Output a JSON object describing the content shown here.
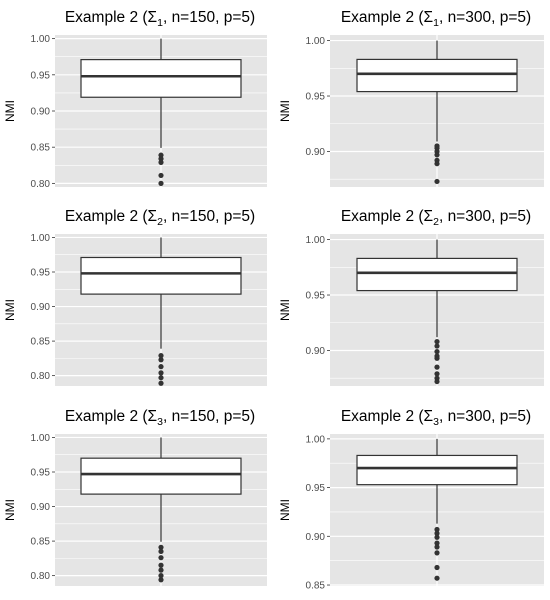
{
  "figure": {
    "background": "#ffffff",
    "panel_background": "#e5e5e5",
    "grid_color": "#ffffff",
    "box_fill": "#ffffff",
    "stroke_color": "#333333",
    "outlier_color": "#333333"
  },
  "chart_data": [
    {
      "type": "boxplot",
      "title": {
        "prefix": "Example 2 (Σ",
        "subscript": "1",
        "suffix": ", n=150, p=5)"
      },
      "ylabel": "NMI",
      "ylim": [
        0.795,
        1.005
      ],
      "yticks": [
        0.8,
        0.85,
        0.9,
        0.95,
        1.0
      ],
      "ytick_labels": [
        "0.80",
        "0.85",
        "0.90",
        "0.95",
        "1.00"
      ],
      "grid": true,
      "box": {
        "min": 0.849,
        "q1": 0.919,
        "median": 0.948,
        "q3": 0.971,
        "max": 1.0
      },
      "outliers": [
        0.839,
        0.834,
        0.829,
        0.811,
        0.8
      ]
    },
    {
      "type": "boxplot",
      "title": {
        "prefix": "Example 2 (Σ",
        "subscript": "1",
        "suffix": ", n=300, p=5)"
      },
      "ylabel": "NMI",
      "ylim": [
        0.868,
        1.005
      ],
      "yticks": [
        0.9,
        0.95,
        1.0
      ],
      "ytick_labels": [
        "0.90",
        "0.95",
        "1.00"
      ],
      "grid": true,
      "box": {
        "min": 0.909,
        "q1": 0.954,
        "median": 0.97,
        "q3": 0.983,
        "max": 1.0
      },
      "outliers": [
        0.905,
        0.903,
        0.9,
        0.897,
        0.892,
        0.889,
        0.873
      ]
    },
    {
      "type": "boxplot",
      "title": {
        "prefix": "Example 2 (Σ",
        "subscript": "2",
        "suffix": ", n=150, p=5)"
      },
      "ylabel": "NMI",
      "ylim": [
        0.785,
        1.005
      ],
      "yticks": [
        0.8,
        0.85,
        0.9,
        0.95,
        1.0
      ],
      "ytick_labels": [
        "0.80",
        "0.85",
        "0.90",
        "0.95",
        "1.00"
      ],
      "grid": true,
      "box": {
        "min": 0.839,
        "q1": 0.918,
        "median": 0.948,
        "q3": 0.971,
        "max": 1.0
      },
      "outliers": [
        0.829,
        0.823,
        0.813,
        0.804,
        0.797,
        0.789
      ]
    },
    {
      "type": "boxplot",
      "title": {
        "prefix": "Example 2 (Σ",
        "subscript": "2",
        "suffix": ", n=300, p=5)"
      },
      "ylabel": "NMI",
      "ylim": [
        0.868,
        1.005
      ],
      "yticks": [
        0.9,
        0.95,
        1.0
      ],
      "ytick_labels": [
        "0.90",
        "0.95",
        "1.00"
      ],
      "grid": true,
      "box": {
        "min": 0.912,
        "q1": 0.954,
        "median": 0.97,
        "q3": 0.983,
        "max": 1.0
      },
      "outliers": [
        0.908,
        0.904,
        0.899,
        0.895,
        0.893,
        0.885,
        0.879,
        0.875,
        0.872
      ]
    },
    {
      "type": "boxplot",
      "title": {
        "prefix": "Example 2 (Σ",
        "subscript": "3",
        "suffix": ", n=150, p=5)"
      },
      "ylabel": "NMI",
      "ylim": [
        0.785,
        1.005
      ],
      "yticks": [
        0.8,
        0.85,
        0.9,
        0.95,
        1.0
      ],
      "ytick_labels": [
        "0.80",
        "0.85",
        "0.90",
        "0.95",
        "1.00"
      ],
      "grid": true,
      "box": {
        "min": 0.849,
        "q1": 0.918,
        "median": 0.947,
        "q3": 0.97,
        "max": 1.0
      },
      "outliers": [
        0.841,
        0.835,
        0.826,
        0.815,
        0.808,
        0.8,
        0.794
      ]
    },
    {
      "type": "boxplot",
      "title": {
        "prefix": "Example 2 (Σ",
        "subscript": "3",
        "suffix": ", n=300, p=5)"
      },
      "ylabel": "NMI",
      "ylim": [
        0.849,
        1.005
      ],
      "yticks": [
        0.85,
        0.9,
        0.95,
        1.0
      ],
      "ytick_labels": [
        "0.85",
        "0.90",
        "0.95",
        "1.00"
      ],
      "grid": true,
      "box": {
        "min": 0.913,
        "q1": 0.953,
        "median": 0.97,
        "q3": 0.983,
        "max": 1.0
      },
      "outliers": [
        0.907,
        0.903,
        0.899,
        0.893,
        0.889,
        0.883,
        0.868,
        0.857
      ]
    }
  ]
}
